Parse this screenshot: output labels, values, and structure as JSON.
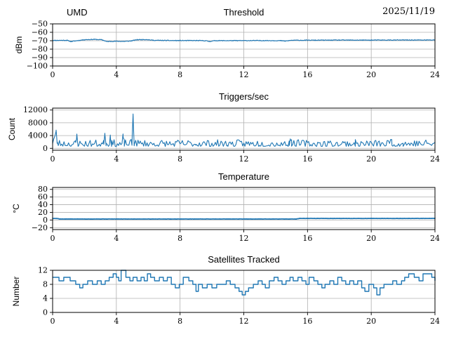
{
  "chart_data": [
    {
      "type": "line",
      "title": "Threshold",
      "title_left": "UMD",
      "title_right": "2025/11/19",
      "ylabel": "dBm",
      "xlabel": "",
      "xlim": [
        0,
        24
      ],
      "ylim": [
        -100,
        -50
      ],
      "xticks": [
        0,
        4,
        8,
        12,
        16,
        20,
        24
      ],
      "xtick_labels": [
        "0",
        "4",
        "8",
        "12",
        "16",
        "20",
        "24"
      ],
      "ytick_vals": [
        -50,
        -60,
        -70,
        -80,
        -90,
        -100
      ],
      "ytick_labels": [
        "−50",
        "−60",
        "−70",
        "−80",
        "−90",
        "−100"
      ],
      "grid": true,
      "legend": "none",
      "line_color": "#1f77b4",
      "line_width": 1.2,
      "series": {
        "name": "threshold_dbm",
        "interp": "linear",
        "noise": {
          "amp": 0.8,
          "pow": 1,
          "center": 0.5,
          "freq": 30
        },
        "seed": 11,
        "keypoints": [
          [
            0,
            -69.6
          ],
          [
            0.9,
            -69.5
          ],
          [
            1.15,
            -71.0
          ],
          [
            1.5,
            -70.0
          ],
          [
            2.0,
            -68.8
          ],
          [
            2.6,
            -68.4
          ],
          [
            3.1,
            -68.9
          ],
          [
            3.4,
            -71.0
          ],
          [
            3.9,
            -70.6
          ],
          [
            4.5,
            -70.8
          ],
          [
            4.9,
            -70.3
          ],
          [
            5.3,
            -68.8
          ],
          [
            5.9,
            -68.6
          ],
          [
            6.3,
            -69.5
          ],
          [
            7.5,
            -69.8
          ],
          [
            9.0,
            -69.8
          ],
          [
            9.6,
            -70.0
          ],
          [
            9.85,
            -70.9
          ],
          [
            10.2,
            -69.9
          ],
          [
            11.5,
            -69.9
          ],
          [
            13.0,
            -69.8
          ],
          [
            14.3,
            -69.9
          ],
          [
            14.6,
            -70.4
          ],
          [
            15.0,
            -69.5
          ],
          [
            16.5,
            -69.4
          ],
          [
            18.0,
            -69.3
          ],
          [
            20.0,
            -69.3
          ],
          [
            22.0,
            -69.2
          ],
          [
            24,
            -69.2
          ]
        ]
      }
    },
    {
      "type": "line",
      "title": "Triggers/sec",
      "ylabel": "Count",
      "xlabel": "",
      "xlim": [
        0,
        24
      ],
      "ylim": [
        -600,
        12600
      ],
      "xticks": [
        0,
        4,
        8,
        12,
        16,
        20,
        24
      ],
      "xtick_labels": [
        "0",
        "4",
        "8",
        "12",
        "16",
        "20",
        "24"
      ],
      "ytick_vals": [
        0,
        4000,
        8000,
        12000
      ],
      "ytick_labels": [
        "0",
        "4000",
        "8000",
        "12000"
      ],
      "grid": true,
      "legend": "none",
      "line_color": "#1f77b4",
      "line_width": 1.1,
      "series": {
        "name": "triggers_per_sec",
        "interp": "linear",
        "noise": {
          "amp": 2100,
          "pow": 1.6,
          "center": 0.1,
          "freq": 14
        },
        "seed": 23,
        "keypoints": [
          [
            0,
            1300
          ],
          [
            0.22,
            4400
          ],
          [
            0.3,
            900
          ],
          [
            1.45,
            800
          ],
          [
            1.52,
            3300
          ],
          [
            1.6,
            800
          ],
          [
            3.2,
            800
          ],
          [
            3.28,
            4400
          ],
          [
            3.36,
            850
          ],
          [
            3.55,
            800
          ],
          [
            3.62,
            3200
          ],
          [
            3.7,
            800
          ],
          [
            4.35,
            800
          ],
          [
            4.42,
            2800
          ],
          [
            4.5,
            850
          ],
          [
            4.98,
            900
          ],
          [
            5.05,
            10200
          ],
          [
            5.12,
            900
          ],
          [
            7.0,
            800
          ],
          [
            9.0,
            850
          ],
          [
            11.0,
            800
          ],
          [
            13.0,
            850
          ],
          [
            14.85,
            800
          ],
          [
            14.92,
            2900
          ],
          [
            15.0,
            850
          ],
          [
            17.0,
            800
          ],
          [
            19.0,
            850
          ],
          [
            21.15,
            800
          ],
          [
            21.22,
            2900
          ],
          [
            21.3,
            800
          ],
          [
            22.0,
            850
          ],
          [
            24,
            900
          ]
        ]
      }
    },
    {
      "type": "line",
      "title": "Temperature",
      "ylabel": "°C",
      "xlabel": "",
      "xlim": [
        0,
        24
      ],
      "ylim": [
        -25,
        85
      ],
      "xticks": [
        0,
        4,
        8,
        12,
        16,
        20,
        24
      ],
      "xtick_labels": [
        "0",
        "4",
        "8",
        "12",
        "16",
        "20",
        "24"
      ],
      "ytick_vals": [
        -20,
        0,
        20,
        40,
        60,
        80
      ],
      "ytick_labels": [
        "−20",
        "0",
        "20",
        "40",
        "60",
        "80"
      ],
      "grid": true,
      "legend": "none",
      "line_color": "#1f77b4",
      "line_width": 1.8,
      "series": {
        "name": "temperature_c",
        "interp": "linear",
        "noise": {
          "amp": 0.5,
          "pow": 1,
          "center": 0.5,
          "freq": 20
        },
        "seed": 5,
        "keypoints": [
          [
            0,
            4.0
          ],
          [
            0.3,
            4.0
          ],
          [
            0.45,
            2.6
          ],
          [
            15.3,
            2.6
          ],
          [
            15.5,
            4.1
          ],
          [
            24,
            4.1
          ]
        ]
      }
    },
    {
      "type": "line",
      "title": "Satellites Tracked",
      "ylabel": "Number",
      "xlabel": "",
      "xlim": [
        0,
        24
      ],
      "ylim": [
        0,
        12
      ],
      "xticks": [
        0,
        4,
        8,
        12,
        16,
        20,
        24
      ],
      "xtick_labels": [
        "0",
        "4",
        "8",
        "12",
        "16",
        "20",
        "24"
      ],
      "ytick_vals": [
        0,
        4,
        8,
        12
      ],
      "ytick_labels": [
        "0",
        "4",
        "8",
        "12"
      ],
      "grid": true,
      "legend": "none",
      "line_color": "#1f77b4",
      "line_width": 1.4,
      "series": {
        "name": "satellites_tracked",
        "interp": "step",
        "seed": 3,
        "keypoints": [
          [
            0,
            10
          ],
          [
            0.4,
            9
          ],
          [
            0.7,
            10
          ],
          [
            1.1,
            9
          ],
          [
            1.45,
            8
          ],
          [
            1.7,
            7
          ],
          [
            1.9,
            8
          ],
          [
            2.2,
            9
          ],
          [
            2.5,
            8
          ],
          [
            2.8,
            9
          ],
          [
            3.05,
            8
          ],
          [
            3.3,
            9
          ],
          [
            3.55,
            10
          ],
          [
            3.8,
            11
          ],
          [
            4.0,
            10
          ],
          [
            4.15,
            9
          ],
          [
            4.3,
            12
          ],
          [
            4.6,
            10
          ],
          [
            4.85,
            9
          ],
          [
            5.05,
            10
          ],
          [
            5.3,
            9
          ],
          [
            5.55,
            10
          ],
          [
            5.75,
            9
          ],
          [
            5.95,
            11
          ],
          [
            6.15,
            10
          ],
          [
            6.4,
            9
          ],
          [
            6.7,
            10
          ],
          [
            6.95,
            9
          ],
          [
            7.2,
            10
          ],
          [
            7.45,
            8
          ],
          [
            7.7,
            7
          ],
          [
            7.95,
            8
          ],
          [
            8.2,
            10
          ],
          [
            8.55,
            9
          ],
          [
            8.8,
            8
          ],
          [
            9.0,
            6
          ],
          [
            9.15,
            8
          ],
          [
            9.4,
            7
          ],
          [
            9.7,
            8
          ],
          [
            10.0,
            7
          ],
          [
            10.3,
            8
          ],
          [
            10.9,
            9
          ],
          [
            11.15,
            8
          ],
          [
            11.45,
            7
          ],
          [
            11.7,
            6
          ],
          [
            11.9,
            5
          ],
          [
            12.1,
            6
          ],
          [
            12.3,
            7
          ],
          [
            12.6,
            8
          ],
          [
            12.9,
            9
          ],
          [
            13.15,
            8
          ],
          [
            13.35,
            7
          ],
          [
            13.6,
            9
          ],
          [
            13.9,
            10
          ],
          [
            14.15,
            9
          ],
          [
            14.4,
            8
          ],
          [
            14.65,
            9
          ],
          [
            14.9,
            10
          ],
          [
            15.1,
            9
          ],
          [
            15.4,
            10
          ],
          [
            15.65,
            9
          ],
          [
            15.9,
            8
          ],
          [
            16.1,
            10
          ],
          [
            16.4,
            9
          ],
          [
            16.65,
            8
          ],
          [
            16.9,
            7
          ],
          [
            17.1,
            8
          ],
          [
            17.4,
            9
          ],
          [
            17.65,
            8
          ],
          [
            17.9,
            10
          ],
          [
            18.15,
            9
          ],
          [
            18.4,
            8
          ],
          [
            18.65,
            9
          ],
          [
            18.9,
            8
          ],
          [
            19.15,
            9
          ],
          [
            19.4,
            7
          ],
          [
            19.6,
            6
          ],
          [
            19.85,
            8
          ],
          [
            20.15,
            7
          ],
          [
            20.35,
            5
          ],
          [
            20.55,
            7
          ],
          [
            20.8,
            8
          ],
          [
            21.1,
            8
          ],
          [
            21.35,
            9
          ],
          [
            21.6,
            8
          ],
          [
            21.9,
            9
          ],
          [
            22.1,
            10
          ],
          [
            22.35,
            11
          ],
          [
            22.7,
            10
          ],
          [
            23.0,
            9
          ],
          [
            23.25,
            11
          ],
          [
            23.8,
            10
          ],
          [
            24,
            9
          ]
        ]
      }
    }
  ],
  "style": {
    "accent_color": "#1f77b4",
    "grid_color": "#b0b0b0",
    "axis_color": "#000000",
    "background_color": "#ffffff"
  }
}
